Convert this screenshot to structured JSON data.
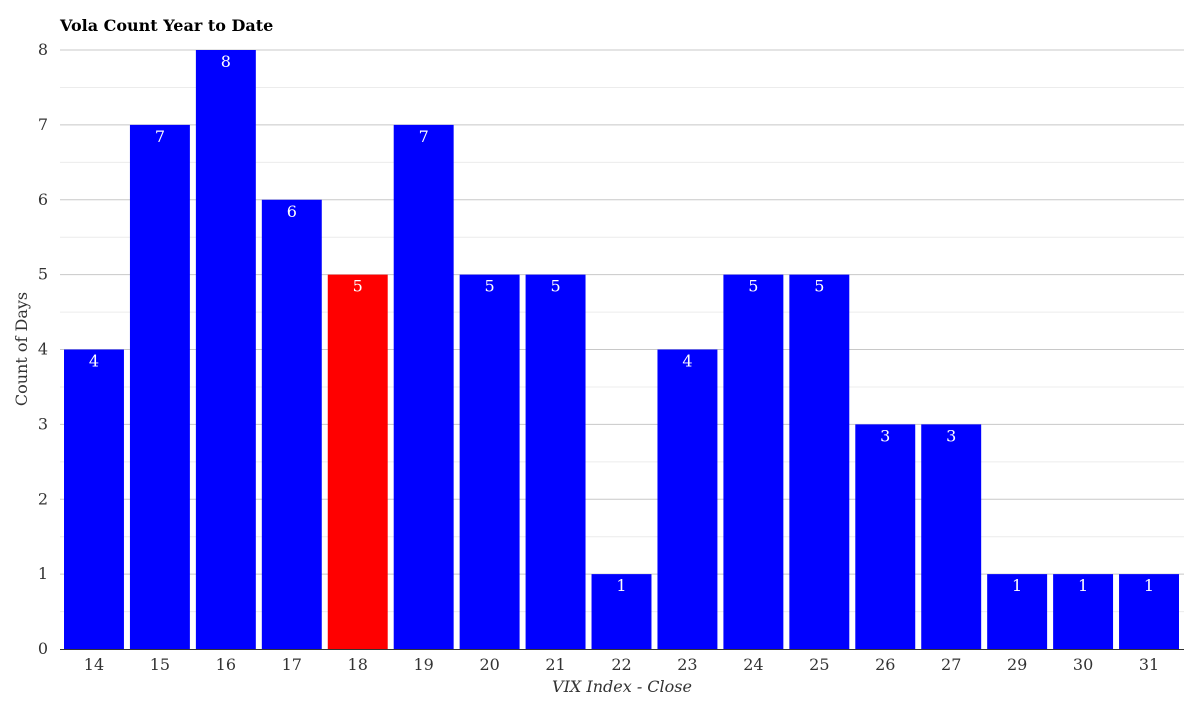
{
  "chart_data": {
    "type": "bar",
    "title": "Vola Count Year to Date",
    "xlabel": "VIX Index - Close",
    "ylabel": "Count of Days",
    "categories": [
      "14",
      "15",
      "16",
      "17",
      "18",
      "19",
      "20",
      "21",
      "22",
      "23",
      "24",
      "25",
      "26",
      "27",
      "29",
      "30",
      "31"
    ],
    "values": [
      4,
      7,
      8,
      6,
      5,
      7,
      5,
      5,
      1,
      4,
      5,
      5,
      3,
      3,
      1,
      1,
      1
    ],
    "highlight_category": "18",
    "ylim": [
      0,
      8
    ],
    "yticks": [
      "0",
      "1",
      "2",
      "3",
      "4",
      "5",
      "6",
      "7",
      "8"
    ],
    "grid": true,
    "legend": "none",
    "colors": {
      "bar": "#0000ff",
      "highlight": "#ff0000",
      "data_label": "#ffffff",
      "major_grid": "#c8c8c8",
      "minor_grid": "#ececec"
    }
  }
}
